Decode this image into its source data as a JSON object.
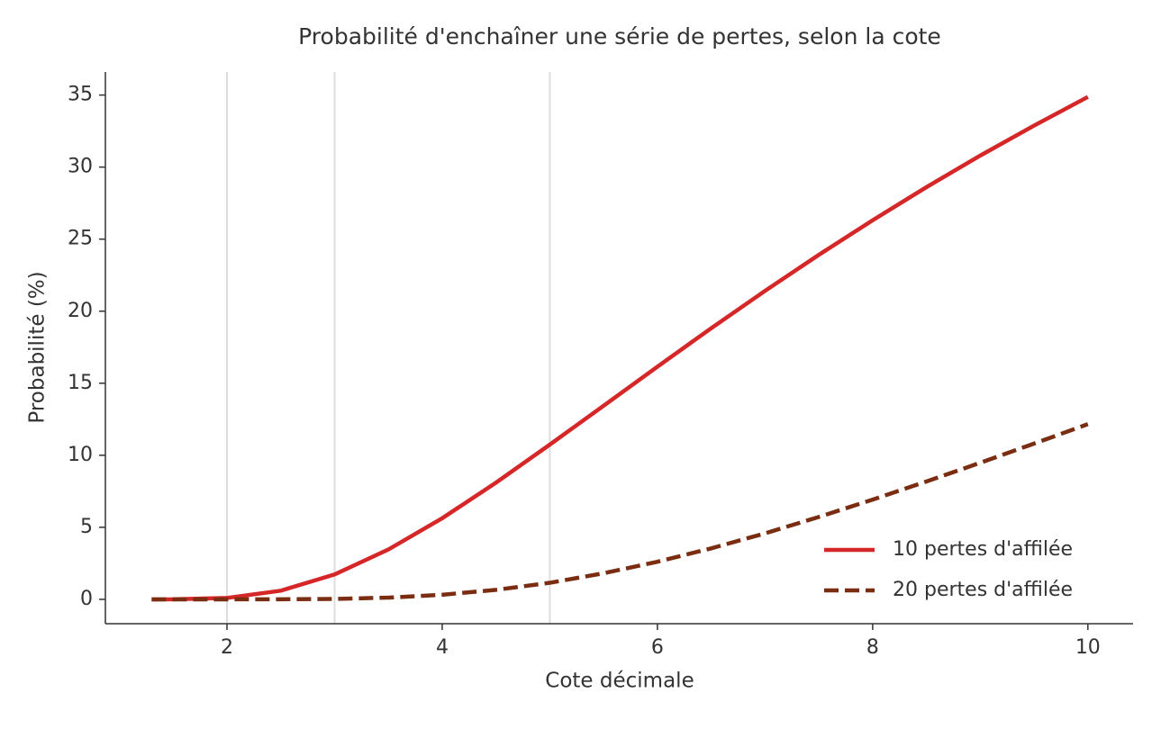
{
  "chart_data": {
    "type": "line",
    "title": "Probabilité d'enchaîner une série de pertes, selon la cote",
    "xlabel": "Cote décimale",
    "ylabel": "Probabilité (%)",
    "x": [
      1.3,
      1.5,
      2,
      2.5,
      3,
      3.5,
      4,
      4.5,
      5,
      5.5,
      6,
      6.5,
      7,
      7.5,
      8,
      8.5,
      9,
      9.5,
      10
    ],
    "series": [
      {
        "name": "10 pertes d'affilée",
        "color": "#d62728",
        "dash": "solid",
        "values": [
          0,
          0.0017,
          0.098,
          0.6,
          1.73,
          3.46,
          5.63,
          8.1,
          10.74,
          13.44,
          16.15,
          18.82,
          21.41,
          23.91,
          26.31,
          28.61,
          30.8,
          32.88,
          34.87
        ]
      },
      {
        "name": "20 pertes d'affilée",
        "color": "#7b2d12",
        "dash": "dashed",
        "values": [
          0,
          0,
          0.0001,
          0.0037,
          0.03,
          0.12,
          0.32,
          0.66,
          1.15,
          1.81,
          2.61,
          3.54,
          4.58,
          5.72,
          6.92,
          8.18,
          9.48,
          10.81,
          12.16
        ]
      }
    ],
    "reference_lines": [
      2,
      3,
      5
    ],
    "xlim": [
      0.87,
      10.42
    ],
    "xticks": [
      2,
      4,
      6,
      8,
      10
    ],
    "ylim": [
      -1.69,
      36.6
    ],
    "yticks": [
      0,
      5,
      10,
      15,
      20,
      25,
      30,
      35
    ],
    "legend": "lower right"
  }
}
